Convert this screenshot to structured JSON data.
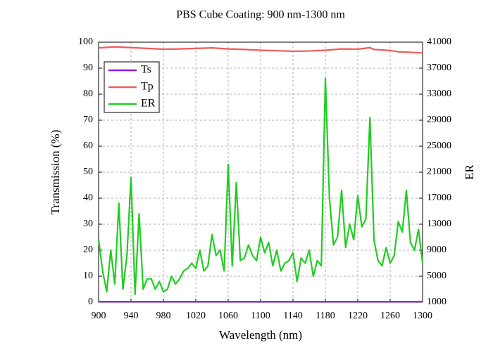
{
  "chart_data": {
    "type": "line",
    "title": "PBS Cube Coating: 900 nm-1300 nm",
    "x_label": "Wavelength (nm)",
    "y_label": "Transmission (%)",
    "y2_label": "ER",
    "xlim": [
      900,
      1300
    ],
    "xticks": [
      900,
      940,
      980,
      1020,
      1060,
      1100,
      1140,
      1180,
      1220,
      1260,
      1300
    ],
    "ylim": [
      0,
      100
    ],
    "yticks": [
      0,
      10,
      20,
      30,
      40,
      50,
      60,
      70,
      80,
      90,
      100
    ],
    "y2lim": [
      1000,
      41000
    ],
    "y2ticks": [
      1000,
      5000,
      9000,
      13000,
      17000,
      21000,
      25000,
      29000,
      33000,
      37000,
      41000
    ],
    "grid": true,
    "legend": "upper left",
    "series": [
      {
        "name": "Ts",
        "color": "#8a1ee0",
        "x": [
          900,
          1300
        ],
        "values": [
          0.2,
          0.2
        ]
      },
      {
        "name": "Tp",
        "color": "#f05a5a",
        "x": [
          900,
          920,
          940,
          960,
          980,
          1000,
          1020,
          1040,
          1060,
          1080,
          1100,
          1120,
          1140,
          1160,
          1180,
          1200,
          1220,
          1235,
          1240,
          1260,
          1270,
          1280,
          1300
        ],
        "values": [
          97.8,
          98.2,
          97.9,
          97.6,
          97.3,
          97.4,
          97.6,
          97.8,
          97.4,
          97.2,
          96.9,
          96.7,
          96.5,
          96.6,
          96.9,
          97.4,
          97.3,
          97.9,
          97.2,
          96.8,
          96.3,
          96.2,
          95.8
        ]
      },
      {
        "name": "ER",
        "color": "#22cc22",
        "axis": "y2",
        "x": [
          900,
          905,
          910,
          915,
          920,
          925,
          930,
          935,
          940,
          945,
          950,
          955,
          960,
          965,
          970,
          975,
          980,
          985,
          990,
          995,
          1000,
          1005,
          1010,
          1015,
          1020,
          1025,
          1030,
          1035,
          1040,
          1045,
          1050,
          1055,
          1060,
          1065,
          1070,
          1075,
          1080,
          1085,
          1090,
          1095,
          1100,
          1105,
          1110,
          1115,
          1120,
          1125,
          1130,
          1135,
          1140,
          1145,
          1150,
          1155,
          1160,
          1165,
          1170,
          1175,
          1180,
          1185,
          1190,
          1195,
          1200,
          1205,
          1210,
          1215,
          1220,
          1225,
          1230,
          1235,
          1240,
          1245,
          1250,
          1255,
          1260,
          1265,
          1270,
          1275,
          1280,
          1285,
          1290,
          1295,
          1300
        ],
        "values": [
          10600,
          5800,
          2600,
          9000,
          3800,
          16200,
          3000,
          8200,
          20200,
          2200,
          14600,
          3000,
          4600,
          4600,
          3000,
          4200,
          2600,
          3000,
          5000,
          3800,
          4600,
          5800,
          6200,
          7000,
          6200,
          9000,
          5800,
          6600,
          11400,
          8200,
          9000,
          5800,
          22200,
          6600,
          19400,
          7400,
          7800,
          9800,
          8200,
          7400,
          11000,
          8600,
          10200,
          6600,
          9000,
          5800,
          7000,
          7400,
          8600,
          4200,
          7800,
          7000,
          9000,
          5000,
          7400,
          6600,
          35400,
          17000,
          9800,
          11000,
          18200,
          9400,
          13000,
          10600,
          17400,
          12600,
          13800,
          29400,
          10600,
          7400,
          6600,
          9400,
          7000,
          8200,
          13400,
          11800,
          18200,
          10200,
          9000,
          12200,
          7000
        ]
      }
    ]
  }
}
